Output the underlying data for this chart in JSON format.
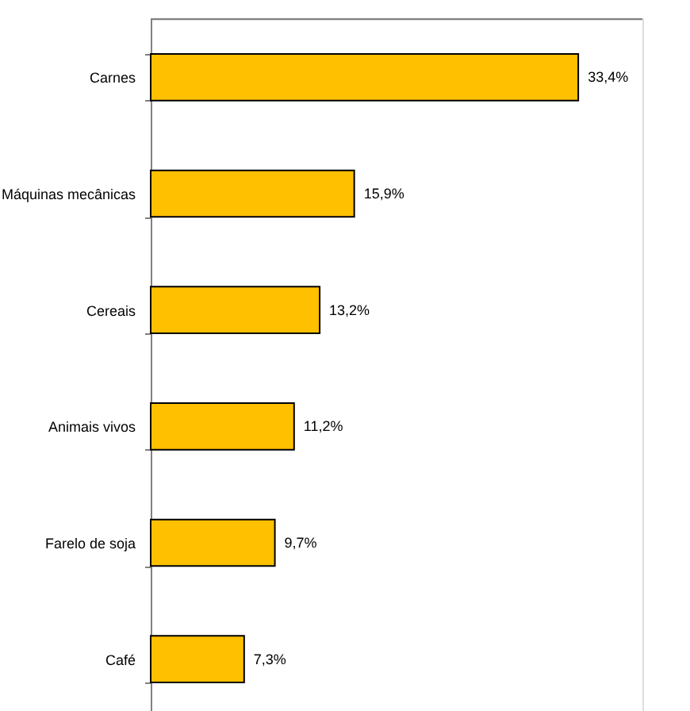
{
  "chart_data": {
    "type": "bar",
    "orientation": "horizontal",
    "categories": [
      "Carnes",
      "Máquinas mecânicas",
      "Cereais",
      "Animais vivos",
      "Farelo de soja",
      "Café"
    ],
    "values": [
      33.4,
      15.9,
      13.2,
      11.2,
      9.7,
      7.3
    ],
    "value_labels": [
      "33,4%",
      "15,9%",
      "13,2%",
      "11,2%",
      "9,7%",
      "7,3%"
    ],
    "color": "#ffc000",
    "grid": false,
    "tick_labels": "y"
  }
}
